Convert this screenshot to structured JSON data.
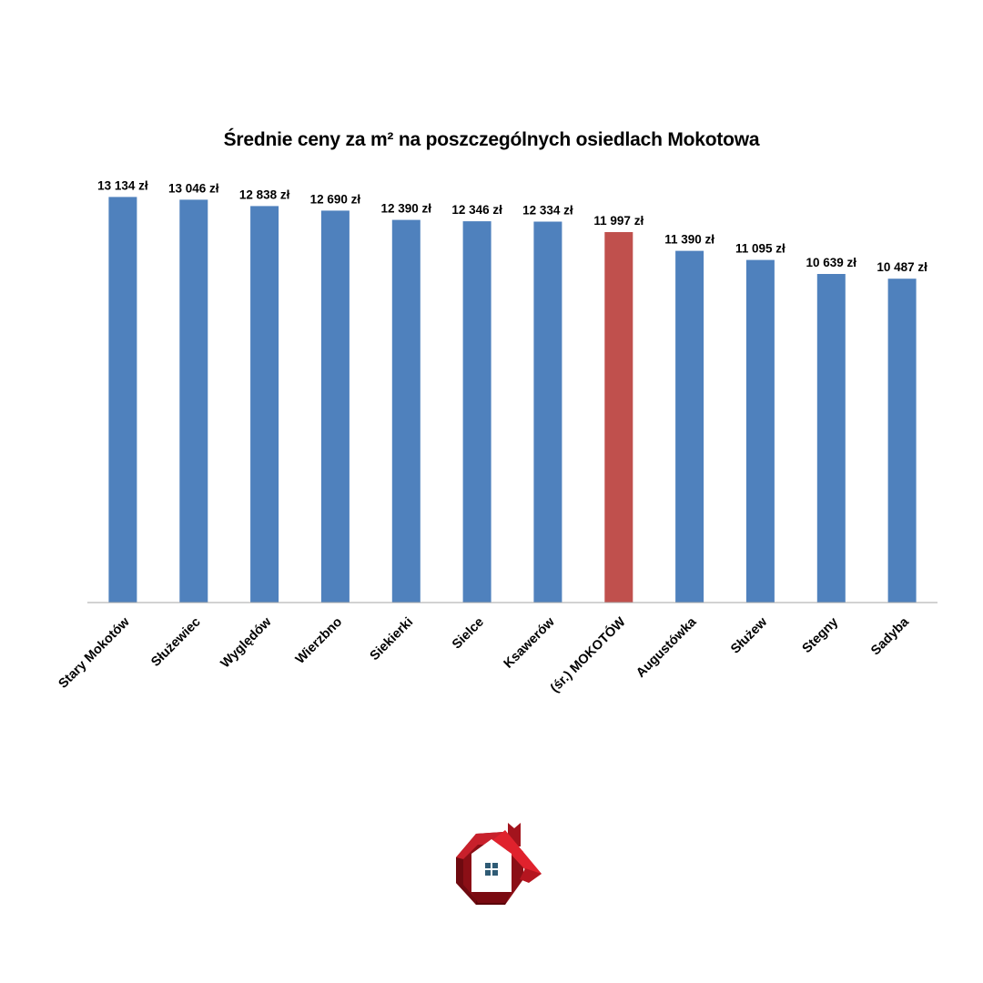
{
  "chart_data": {
    "type": "bar",
    "title": "Średnie ceny za m² na poszczególnych osiedlach Mokotowa",
    "xlabel": "",
    "ylabel": "",
    "categories": [
      "Stary Mokotów",
      "Służewiec",
      "Wyględów",
      "Wierzbno",
      "Siekierki",
      "Sielce",
      "Ksawerów",
      "(śr.) MOKOTÓW",
      "Augustówka",
      "Służew",
      "Stegny",
      "Sadyba"
    ],
    "values": [
      13134,
      13046,
      12838,
      12690,
      12390,
      12346,
      12334,
      11997,
      11390,
      11095,
      10639,
      10487
    ],
    "data_labels": [
      "13 134 zł",
      "13 046 zł",
      "12 838 zł",
      "12 690 zł",
      "12 390 zł",
      "12 346 zł",
      "12 334 zł",
      "11 997 zł",
      "11 390 zł",
      "11 095 zł",
      "10 639 zł",
      "10 487 zł"
    ],
    "ylim": [
      0,
      14000
    ],
    "highlight_index": 7,
    "colors": {
      "bar": "#4F81BD",
      "highlight": "#C0504D",
      "axis": "#A6A6A6"
    },
    "grid": false,
    "legend": "none",
    "y_axis_visible": false
  },
  "logo": {
    "icon": "house-logo-icon",
    "colors": {
      "dark_red": "#8B0F16",
      "red": "#D31F2A",
      "window": "#2F5B75"
    }
  }
}
